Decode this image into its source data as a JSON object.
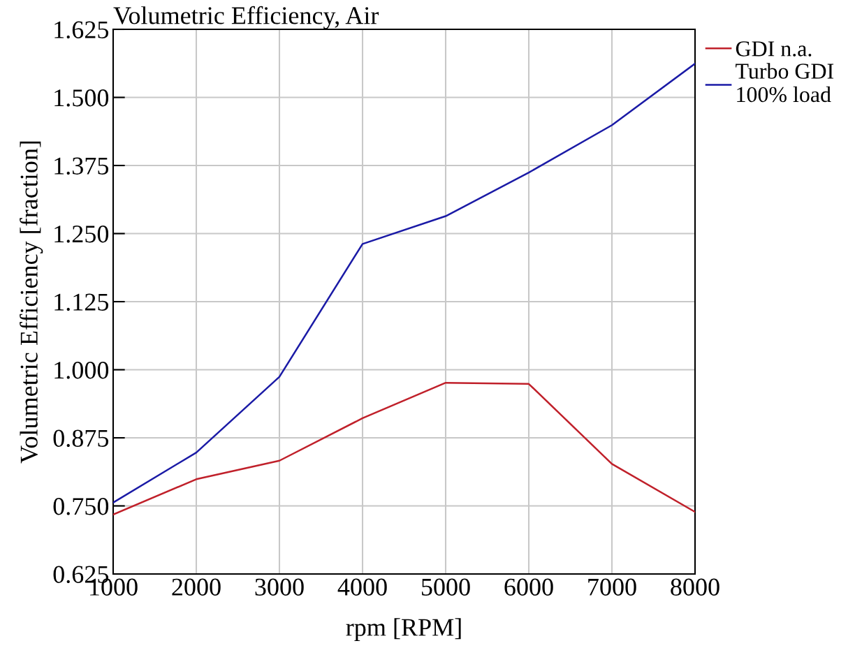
{
  "chart_data": {
    "type": "line",
    "title": "Volumetric Efficiency, Air",
    "xlabel": "rpm [RPM]",
    "ylabel": "Volumetric Efficiency [fraction]",
    "x": [
      1000,
      2000,
      3000,
      4000,
      5000,
      6000,
      7000,
      8000
    ],
    "series": [
      {
        "name": "GDI n.a.",
        "color": "#c0202a",
        "values": [
          0.734,
          0.799,
          0.833,
          0.911,
          0.976,
          0.974,
          0.827,
          0.739
        ]
      },
      {
        "name": "Turbo GDI\n100% load",
        "color": "#1a1aa6",
        "values": [
          0.756,
          0.848,
          0.987,
          1.231,
          1.282,
          1.362,
          1.449,
          1.562
        ]
      }
    ],
    "xlim": [
      1000,
      8000
    ],
    "xticks": [
      1000,
      2000,
      3000,
      4000,
      5000,
      6000,
      7000,
      8000
    ],
    "ylim": [
      0.625,
      1.625
    ],
    "yticks": [
      {
        "value": 0.625,
        "label": "0.625"
      },
      {
        "value": 0.75,
        "label": "0.750"
      },
      {
        "value": 0.875,
        "label": "0.875"
      },
      {
        "value": 1.0,
        "label": "1.000"
      },
      {
        "value": 1.125,
        "label": "1.125"
      },
      {
        "value": 1.25,
        "label": "1.250"
      },
      {
        "value": 1.375,
        "label": "1.375"
      },
      {
        "value": 1.5,
        "label": "1.500"
      },
      {
        "value": 1.625,
        "label": "1.625"
      }
    ],
    "grid": true,
    "legend": "top right",
    "marker": "none",
    "line_style": "solid"
  }
}
